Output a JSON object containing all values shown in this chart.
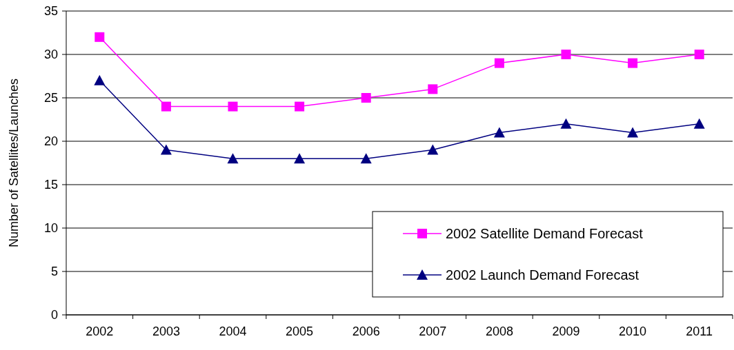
{
  "chart_data": {
    "type": "line",
    "ylabel": "Number of Satellites/Launches",
    "categories": [
      "2002",
      "2003",
      "2004",
      "2005",
      "2006",
      "2007",
      "2008",
      "2009",
      "2010",
      "2011"
    ],
    "series": [
      {
        "name": "2002 Satellite Demand Forecast",
        "color": "#ff00ff",
        "marker": "square",
        "values": [
          32,
          24,
          24,
          24,
          25,
          26,
          29,
          30,
          29,
          30
        ]
      },
      {
        "name": "2002 Launch Demand Forecast",
        "color": "#000080",
        "marker": "triangle",
        "values": [
          27,
          19,
          18,
          18,
          18,
          19,
          21,
          22,
          21,
          22
        ]
      }
    ],
    "ylim": [
      0,
      35
    ],
    "yticks": [
      0,
      5,
      10,
      15,
      20,
      25,
      30,
      35
    ],
    "grid": "y",
    "legend": "bottom right"
  }
}
